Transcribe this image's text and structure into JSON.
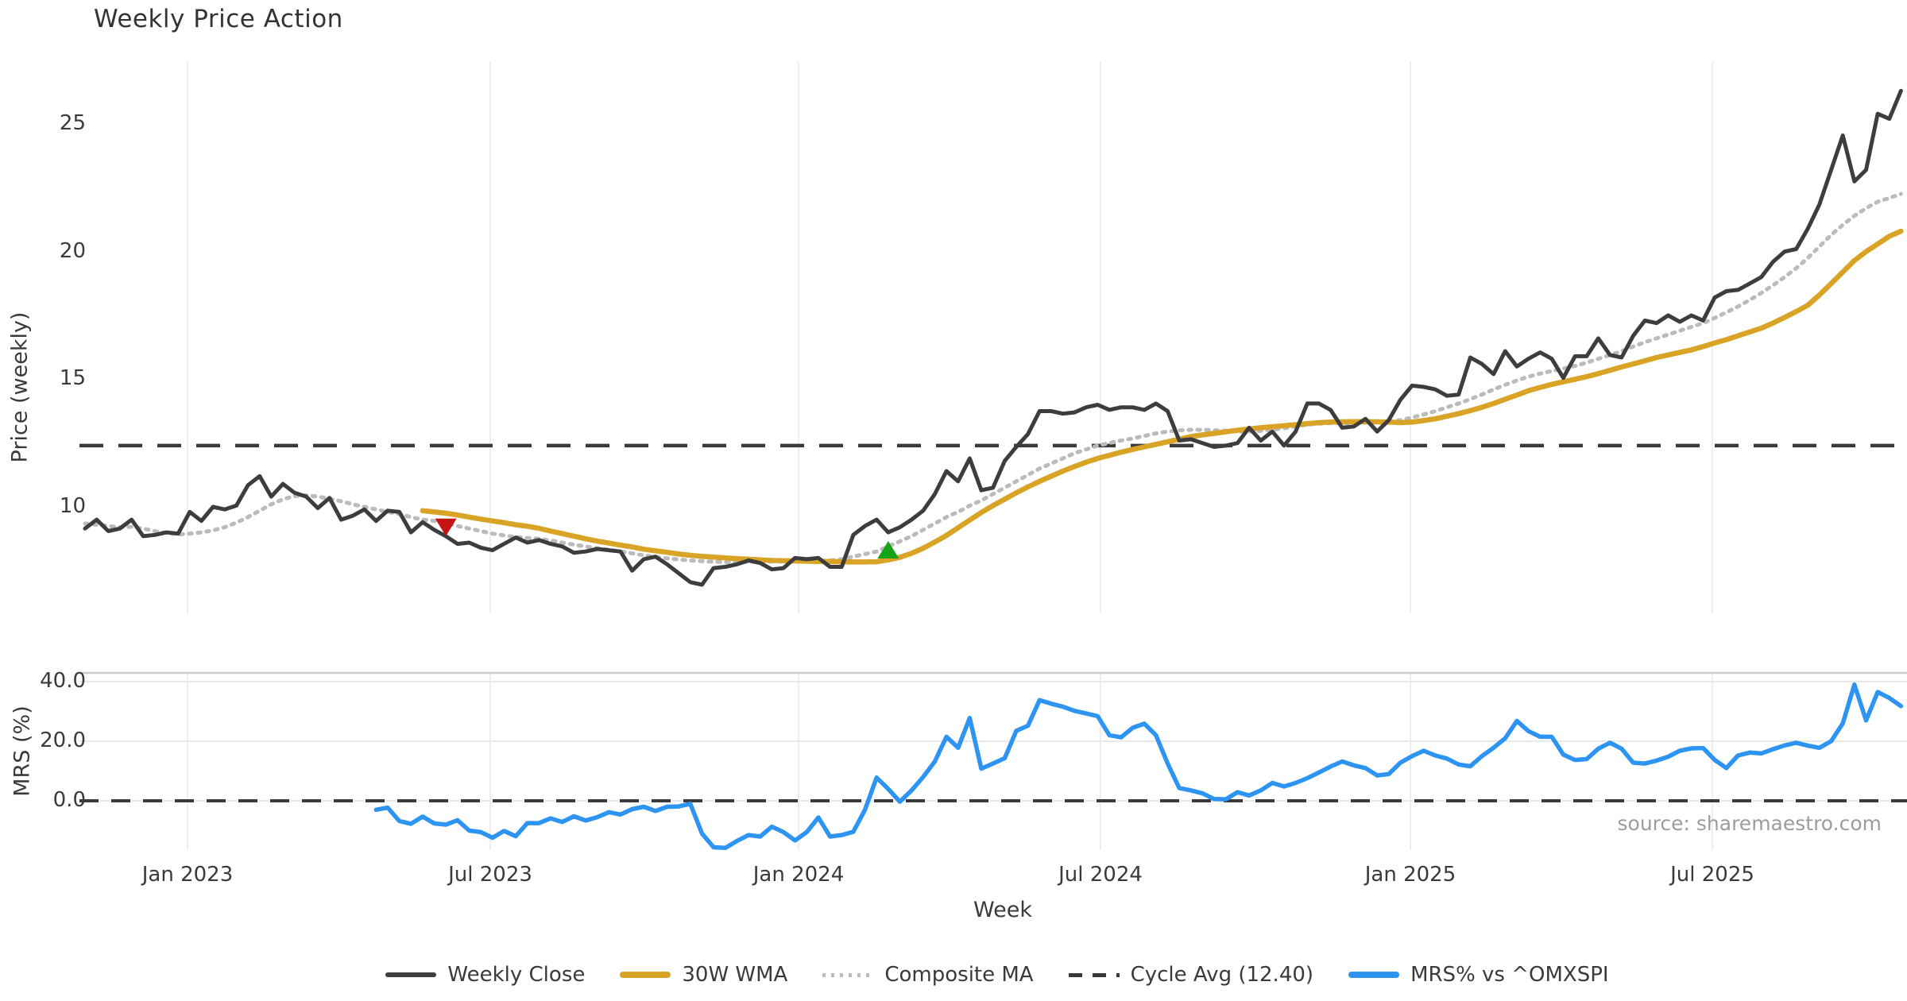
{
  "title": "Weekly Price Action",
  "source_text": "source: sharemaestro.com",
  "x_axis": {
    "label": "Week",
    "ticks": [
      "Jan 2023",
      "Jul 2023",
      "Jan 2024",
      "Jul 2024",
      "Jan 2025",
      "Jul 2025"
    ]
  },
  "price_panel": {
    "axis_label": "Price (weekly)",
    "ticks": [
      {
        "label": "25",
        "v": 25
      },
      {
        "label": "20",
        "v": 20
      },
      {
        "label": "15",
        "v": 15
      },
      {
        "label": "10",
        "v": 10
      }
    ]
  },
  "mrs_panel": {
    "axis_label": "MRS (%)",
    "ticks": [
      {
        "label": "40.0",
        "v": 40
      },
      {
        "label": "20.0",
        "v": 20
      },
      {
        "label": "0.0",
        "v": 0
      }
    ]
  },
  "legend": {
    "items": [
      {
        "label": "Weekly Close",
        "color": "#3d3d3d",
        "style": "solid"
      },
      {
        "label": "30W WMA",
        "color": "#d9a425",
        "style": "solid-thick"
      },
      {
        "label": "Composite MA",
        "color": "#bbbbbb",
        "style": "dotted"
      },
      {
        "label": "Cycle Avg (12.40)",
        "color": "#3a3a3a",
        "style": "dashed"
      },
      {
        "label": "MRS% vs ^OMXSPI",
        "color": "#2d94f2",
        "style": "solid-thick"
      }
    ]
  },
  "colors": {
    "weekly_close": "#3d3d3d",
    "wma": "#d9a425",
    "composite": "#bbbbbb",
    "cycle_avg": "#3a3a3a",
    "mrs": "#2d94f2",
    "sell_marker": "#c41414",
    "buy_marker": "#17a317",
    "grid": "#eeeeee",
    "mrs_grid": "#e9e9e9",
    "mrs_spine": "#cccccc"
  },
  "chart_data": [
    {
      "type": "line",
      "panel": "price",
      "title": "Weekly Price Action",
      "ylabel": "Price (weekly)",
      "xlabel": "Week",
      "x_range_weeks": 157,
      "x_tick_labels": [
        "Jan 2023",
        "Jul 2023",
        "Jan 2024",
        "Jul 2024",
        "Jan 2025",
        "Jul 2025"
      ],
      "ylim": [
        6.2,
        27.8
      ],
      "cycle_avg": 12.4,
      "markers": [
        {
          "type": "sell-triangle-down",
          "week_index": 31,
          "value": 9.2
        },
        {
          "type": "buy-triangle-up",
          "week_index": 69,
          "value": 8.32
        }
      ],
      "series": [
        {
          "name": "Weekly Close",
          "start_index": 0,
          "values": [
            9.15,
            9.5,
            9.05,
            9.15,
            9.5,
            8.85,
            8.9,
            9.0,
            8.95,
            9.8,
            9.45,
            10.0,
            9.9,
            10.05,
            10.85,
            11.2,
            10.4,
            10.9,
            10.55,
            10.4,
            9.95,
            10.35,
            9.5,
            9.65,
            9.9,
            9.45,
            9.85,
            9.8,
            9.0,
            9.4,
            9.1,
            8.85,
            8.55,
            8.6,
            8.4,
            8.3,
            8.55,
            8.8,
            8.6,
            8.7,
            8.55,
            8.45,
            8.2,
            8.25,
            8.35,
            8.3,
            8.25,
            7.5,
            7.95,
            8.05,
            7.75,
            7.4,
            7.05,
            6.95,
            7.6,
            7.65,
            7.75,
            7.9,
            7.8,
            7.55,
            7.6,
            8.0,
            7.95,
            8.0,
            7.65,
            7.65,
            8.9,
            9.25,
            9.5,
            9.0,
            9.2,
            9.5,
            9.85,
            10.5,
            11.4,
            11.0,
            11.9,
            10.65,
            10.75,
            11.8,
            12.35,
            12.85,
            13.75,
            13.75,
            13.65,
            13.7,
            13.9,
            14.0,
            13.8,
            13.9,
            13.9,
            13.8,
            14.05,
            13.75,
            12.6,
            12.65,
            12.5,
            12.35,
            12.4,
            12.5,
            13.1,
            12.6,
            12.95,
            12.4,
            12.95,
            14.05,
            14.05,
            13.8,
            13.1,
            13.15,
            13.45,
            12.95,
            13.4,
            14.2,
            14.75,
            14.7,
            14.6,
            14.35,
            14.4,
            15.85,
            15.6,
            15.2,
            16.1,
            15.5,
            15.8,
            16.05,
            15.8,
            15.05,
            15.9,
            15.9,
            16.6,
            15.95,
            15.85,
            16.7,
            17.3,
            17.2,
            17.5,
            17.25,
            17.5,
            17.3,
            18.2,
            18.45,
            18.5,
            18.75,
            19.0,
            19.6,
            20.0,
            20.1,
            20.9,
            21.85,
            23.2,
            24.55,
            22.75,
            23.2,
            25.4,
            25.2,
            26.3
          ]
        },
        {
          "name": "30W WMA",
          "start_index": 29,
          "values": [
            9.85,
            9.8,
            9.75,
            9.68,
            9.6,
            9.52,
            9.45,
            9.38,
            9.3,
            9.24,
            9.16,
            9.05,
            8.95,
            8.85,
            8.75,
            8.66,
            8.58,
            8.5,
            8.43,
            8.34,
            8.28,
            8.22,
            8.15,
            8.1,
            8.06,
            8.03,
            8.0,
            7.97,
            7.95,
            7.92,
            7.9,
            7.89,
            7.88,
            7.87,
            7.86,
            7.86,
            7.85,
            7.84,
            7.84,
            7.85,
            7.92,
            8.02,
            8.18,
            8.38,
            8.62,
            8.88,
            9.18,
            9.48,
            9.78,
            10.05,
            10.3,
            10.55,
            10.78,
            11.0,
            11.2,
            11.4,
            11.58,
            11.75,
            11.9,
            12.02,
            12.14,
            12.25,
            12.35,
            12.45,
            12.55,
            12.65,
            12.75,
            12.82,
            12.88,
            12.94,
            13.0,
            13.05,
            13.1,
            13.14,
            13.18,
            13.22,
            13.26,
            13.3,
            13.32,
            13.33,
            13.34,
            13.34,
            13.33,
            13.32,
            13.3,
            13.32,
            13.38,
            13.45,
            13.55,
            13.65,
            13.77,
            13.9,
            14.05,
            14.22,
            14.38,
            14.55,
            14.68,
            14.8,
            14.9,
            15.0,
            15.1,
            15.22,
            15.35,
            15.48,
            15.6,
            15.72,
            15.85,
            15.95,
            16.05,
            16.15,
            16.28,
            16.42,
            16.55,
            16.7,
            16.85,
            17.0,
            17.2,
            17.42,
            17.65,
            17.9,
            18.3,
            18.75,
            19.2,
            19.65,
            20.0,
            20.3,
            20.6,
            20.8
          ]
        },
        {
          "name": "Composite MA",
          "start_index": 0,
          "values": [
            9.35,
            9.3,
            9.25,
            9.2,
            9.22,
            9.15,
            9.05,
            8.98,
            8.92,
            8.95,
            9.0,
            9.08,
            9.2,
            9.38,
            9.6,
            9.85,
            10.1,
            10.3,
            10.42,
            10.45,
            10.4,
            10.32,
            10.22,
            10.1,
            10.0,
            9.9,
            9.8,
            9.72,
            9.6,
            9.5,
            9.45,
            9.35,
            9.25,
            9.15,
            9.05,
            8.95,
            8.88,
            8.82,
            8.78,
            8.75,
            8.68,
            8.6,
            8.52,
            8.45,
            8.38,
            8.32,
            8.25,
            8.18,
            8.1,
            8.04,
            7.98,
            7.94,
            7.9,
            7.87,
            7.85,
            7.84,
            7.84,
            7.85,
            7.85,
            7.86,
            7.86,
            7.86,
            7.87,
            7.88,
            7.9,
            7.95,
            8.05,
            8.15,
            8.25,
            8.45,
            8.65,
            8.85,
            9.1,
            9.35,
            9.6,
            9.8,
            10.05,
            10.25,
            10.5,
            10.75,
            11.0,
            11.25,
            11.5,
            11.7,
            11.9,
            12.1,
            12.25,
            12.4,
            12.5,
            12.6,
            12.68,
            12.78,
            12.88,
            12.95,
            13.0,
            13.02,
            13.02,
            13.0,
            12.98,
            12.95,
            12.95,
            12.98,
            13.02,
            13.08,
            13.15,
            13.22,
            13.26,
            13.28,
            13.28,
            13.28,
            13.3,
            13.32,
            13.35,
            13.4,
            13.5,
            13.62,
            13.75,
            13.9,
            14.05,
            14.22,
            14.4,
            14.6,
            14.78,
            14.95,
            15.1,
            15.22,
            15.32,
            15.42,
            15.52,
            15.65,
            15.8,
            15.95,
            16.1,
            16.28,
            16.45,
            16.6,
            16.75,
            16.9,
            17.05,
            17.2,
            17.4,
            17.62,
            17.85,
            18.1,
            18.38,
            18.68,
            19.0,
            19.35,
            19.75,
            20.2,
            20.65,
            21.05,
            21.4,
            21.7,
            21.95,
            22.1,
            22.26
          ]
        }
      ]
    },
    {
      "type": "line",
      "panel": "mrs",
      "ylabel": "MRS (%)",
      "ylim": [
        -22,
        42
      ],
      "zero_line": 0.0,
      "series": [
        {
          "name": "MRS% vs ^OMXSPI",
          "start_index": 25,
          "values": [
            -3.0,
            -2.3,
            -6.8,
            -7.7,
            -5.3,
            -7.6,
            -8.0,
            -6.5,
            -10.0,
            -10.5,
            -12.4,
            -10.1,
            -11.9,
            -7.5,
            -7.5,
            -5.9,
            -7.1,
            -5.2,
            -6.6,
            -5.5,
            -3.8,
            -4.6,
            -2.8,
            -2.0,
            -3.4,
            -2.0,
            -1.9,
            -1.0,
            -11.0,
            -15.6,
            -15.8,
            -13.5,
            -11.5,
            -12.0,
            -8.7,
            -10.5,
            -13.3,
            -10.5,
            -5.6,
            -12.0,
            -11.5,
            -10.4,
            -3.0,
            7.8,
            4.0,
            -0.3,
            3.5,
            8.0,
            13.2,
            21.5,
            17.8,
            27.8,
            10.8,
            12.5,
            14.3,
            23.5,
            25.2,
            33.8,
            32.6,
            31.6,
            30.2,
            29.3,
            28.4,
            22.0,
            21.3,
            24.5,
            25.9,
            22.0,
            12.5,
            4.3,
            3.5,
            2.5,
            0.6,
            0.5,
            2.9,
            1.8,
            3.5,
            6.0,
            4.8,
            6.0,
            7.6,
            9.5,
            11.5,
            13.2,
            11.9,
            11.0,
            8.5,
            9.0,
            12.8,
            15.0,
            16.8,
            15.2,
            14.2,
            12.2,
            11.6,
            15.0,
            17.8,
            21.0,
            26.8,
            23.4,
            21.5,
            21.5,
            15.5,
            13.7,
            14.0,
            17.5,
            19.5,
            17.5,
            12.8,
            12.5,
            13.5,
            14.8,
            16.8,
            17.6,
            17.7,
            13.7,
            11.0,
            15.2,
            16.2,
            15.9,
            17.3,
            18.6,
            19.5,
            18.5,
            17.8,
            20.0,
            26.0,
            39.0,
            27.0,
            36.5,
            34.5,
            31.8
          ]
        }
      ]
    }
  ]
}
